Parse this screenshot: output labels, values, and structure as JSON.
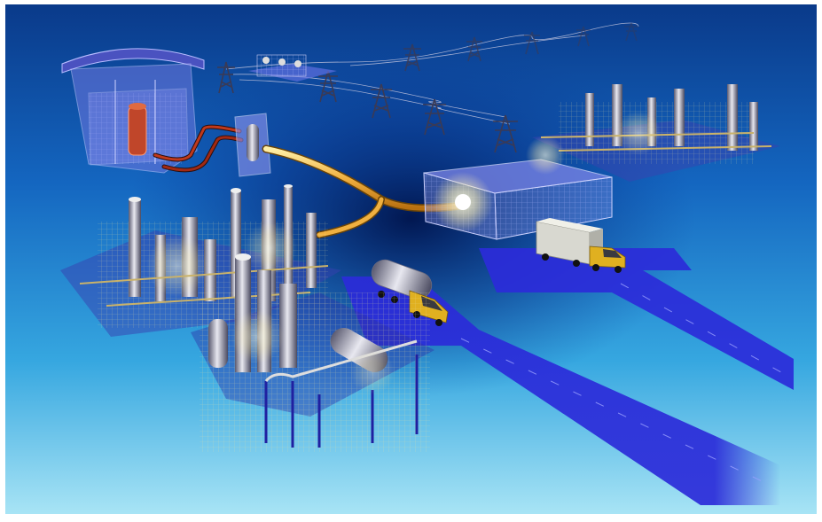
{
  "scene": {
    "subject": "",
    "colors": {
      "sky_top": "#0a3a8a",
      "sky_mid": "#1c7fd0",
      "sky_bottom": "#9fdff2",
      "glow_center": "#001a55",
      "road": "#2a2ad8",
      "road_edge": "#1414a0",
      "pipe": "#f0b040",
      "pipe_hot": "#c0391b",
      "building": "#7f86e8",
      "plant_light": "#fff2b0",
      "truck_cab": "#e0b020",
      "frame": "#ffffff"
    },
    "icons": [
      "reactor-building-icon",
      "heat-exchanger-icon",
      "power-pylon-icon",
      "refinery-icon",
      "fueling-station-icon",
      "tanker-truck-icon",
      "box-truck-icon",
      "substation-icon"
    ]
  }
}
